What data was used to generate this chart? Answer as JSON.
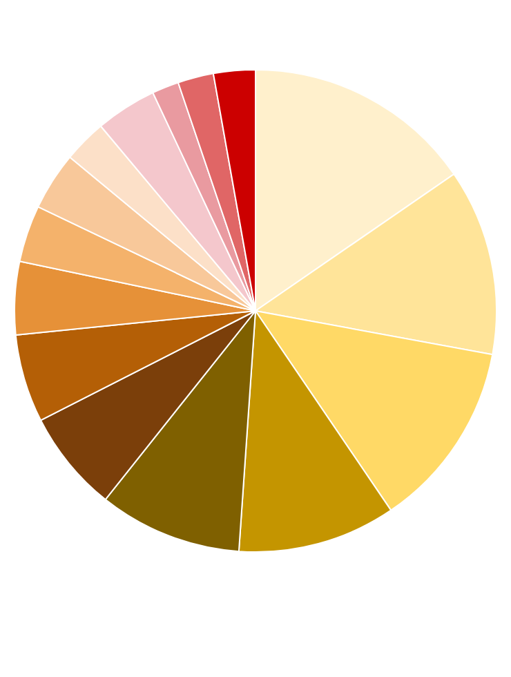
{
  "chart_data": {
    "type": "pie",
    "categories": [
      null,
      null,
      null,
      null,
      null,
      null,
      null,
      null,
      null,
      null,
      null,
      null,
      null,
      null,
      null
    ],
    "values": [
      15.4,
      12.5,
      12.6,
      10.6,
      9.6,
      6.8,
      5.9,
      4.9,
      3.8,
      3.9,
      2.9,
      4.1,
      1.8,
      2.4,
      2.8
    ],
    "colors": [
      "#fff0cc",
      "#ffe499",
      "#ffd966",
      "#c49500",
      "#7f6000",
      "#7b3f0a",
      "#b45f06",
      "#e69138",
      "#f4b26b",
      "#f8c89a",
      "#fce0c8",
      "#f4c7cc",
      "#e99aa0",
      "#e06666",
      "#cc0000"
    ],
    "legend": false
  }
}
